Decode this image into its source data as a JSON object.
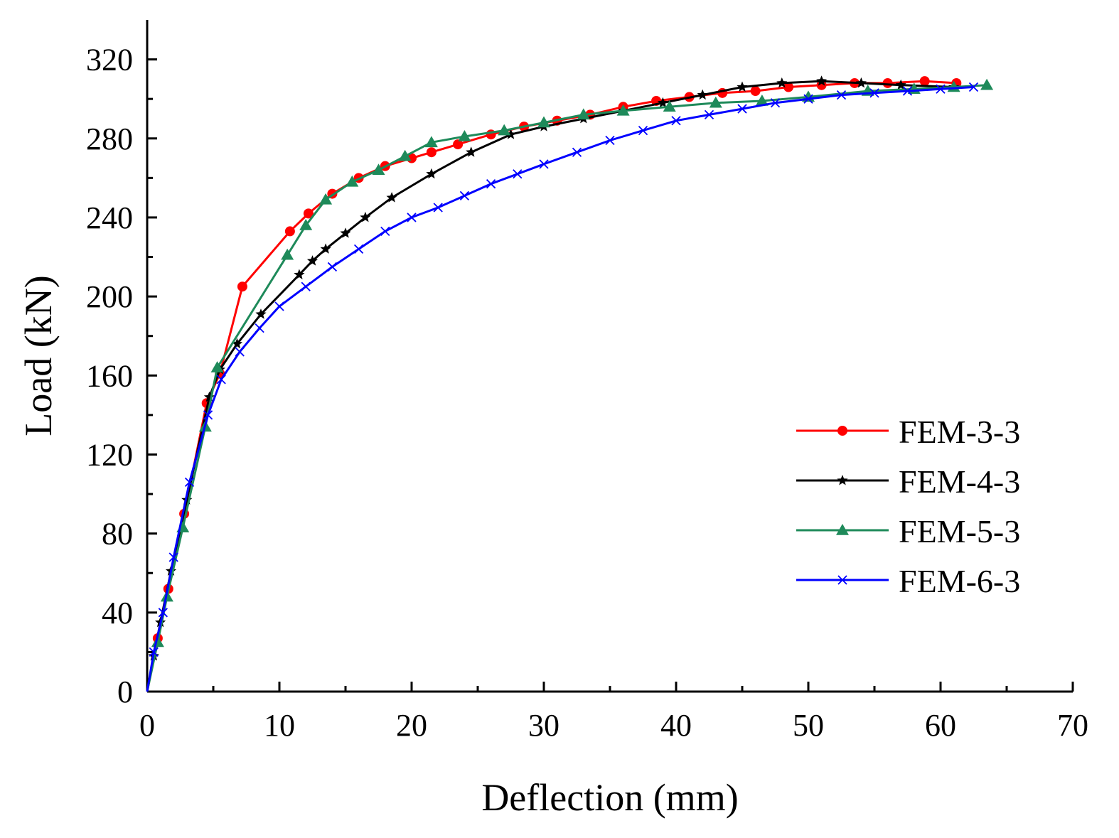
{
  "chart_data": {
    "type": "line",
    "title": "",
    "xlabel": "Deflection (mm)",
    "ylabel": "Load (kN)",
    "xlim": [
      0,
      70
    ],
    "ylim": [
      0,
      340
    ],
    "xticks": [
      0,
      10,
      20,
      30,
      40,
      50,
      60,
      70
    ],
    "xtick_labels": [
      "0",
      "10",
      "20",
      "30",
      "40",
      "50",
      "60",
      "70"
    ],
    "yticks": [
      0,
      40,
      80,
      120,
      160,
      200,
      240,
      280,
      320
    ],
    "ytick_labels": [
      "0",
      "40",
      "80",
      "120",
      "160",
      "200",
      "240",
      "280",
      "320"
    ],
    "grid": false,
    "legend_position": "bottom-right",
    "series": [
      {
        "name": "FEM-3-3",
        "color": "#ff0000",
        "marker": "circle",
        "x": [
          0,
          0.8,
          1.6,
          2.8,
          4.5,
          5.5,
          7.2,
          10.8,
          12.2,
          14,
          16,
          18,
          20,
          21.5,
          23.5,
          26,
          28.5,
          31,
          33.5,
          36,
          38.5,
          41,
          43.5,
          46,
          48.5,
          51,
          53.5,
          56,
          58.8,
          61.2
        ],
        "y": [
          0,
          27,
          52,
          90,
          146,
          161,
          205,
          233,
          242,
          252,
          260,
          266,
          270,
          273,
          277,
          282,
          286,
          289,
          292,
          296,
          299,
          301,
          303,
          304,
          306,
          307,
          308,
          308,
          309,
          308
        ]
      },
      {
        "name": "FEM-4-3",
        "color": "#000000",
        "marker": "star",
        "x": [
          0,
          0.5,
          1.0,
          1.8,
          3.0,
          4.7,
          5.5,
          6.8,
          8.6,
          11.5,
          12.5,
          13.5,
          15,
          16.5,
          18.5,
          21.5,
          24.5,
          27.5,
          30,
          33,
          36,
          39,
          42,
          45,
          48,
          51,
          54,
          57,
          61
        ],
        "y": [
          0,
          18,
          35,
          61,
          97,
          149,
          163,
          176,
          191,
          211,
          218,
          224,
          232,
          240,
          250,
          262,
          273,
          282,
          286,
          290,
          294,
          298,
          302,
          306,
          308,
          309,
          308,
          307,
          306
        ]
      },
      {
        "name": "FEM-5-3",
        "color": "#1e8a5a",
        "marker": "triangle",
        "x": [
          0,
          0.8,
          1.5,
          2.7,
          4.4,
          5.3,
          10.6,
          12,
          13.5,
          15.5,
          17.5,
          19.5,
          21.5,
          24,
          27,
          30,
          33,
          36,
          39.5,
          43,
          46.5,
          50,
          54.5,
          58,
          61,
          63.5
        ],
        "y": [
          0,
          25,
          48,
          83,
          134,
          164,
          221,
          236,
          249,
          258,
          264,
          271,
          278,
          281,
          284,
          288,
          292,
          294,
          296,
          298,
          299,
          301,
          304,
          305,
          306,
          307
        ]
      },
      {
        "name": "FEM-6-3",
        "color": "#0000ff",
        "marker": "x",
        "x": [
          0,
          0.5,
          1.2,
          2.0,
          3.2,
          4.6,
          5.6,
          7,
          8.5,
          10,
          12,
          14,
          16,
          18,
          20,
          22,
          24,
          26,
          28,
          30,
          32.5,
          35,
          37.5,
          40,
          42.5,
          45,
          47.5,
          50,
          52.5,
          55,
          57.5,
          60,
          62.5
        ],
        "y": [
          0,
          20,
          40,
          68,
          106,
          140,
          158,
          172,
          184,
          195,
          205,
          215,
          224,
          233,
          240,
          245,
          251,
          257,
          262,
          267,
          273,
          279,
          284,
          289,
          292,
          295,
          298,
          300,
          302,
          303,
          304,
          305,
          306
        ]
      }
    ]
  }
}
